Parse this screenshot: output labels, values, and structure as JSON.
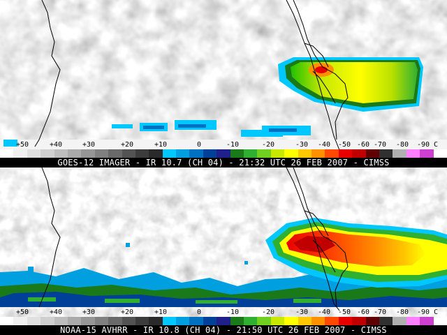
{
  "panels": [
    {
      "caption": "GOES-12 IMAGER - IR 10.7 (CH 04) - 21:32 UTC 26 FEB 2007 - CIMSS"
    },
    {
      "caption": "NOAA-15 AVHRR - IR 10.8 (CH 04) - 21:50 UTC 26 FEB 2007 - CIMSS"
    }
  ],
  "scale": {
    "labels": [
      "+50",
      "+40",
      "+30",
      "+20",
      "+10",
      "0",
      "-10",
      "-20",
      "-30",
      "-40",
      "-50",
      "-60",
      "-70",
      "-80",
      "-90 C"
    ],
    "colors": [
      "#ffffff",
      "#f0f0f0",
      "#e0e0e0",
      "#cfcfcf",
      "#bdbdbd",
      "#aaaaaa",
      "#969696",
      "#808080",
      "#6a6a6a",
      "#535353",
      "#3c3c3c",
      "#2a2a2a",
      "#00c8ff",
      "#00a0e0",
      "#0070c0",
      "#004098",
      "#20208a",
      "#1a7a1a",
      "#30b030",
      "#70d020",
      "#c8e800",
      "#ffff00",
      "#ffc800",
      "#ff9000",
      "#ff4800",
      "#e80000",
      "#c00000",
      "#600000",
      "#303030",
      "#b0b0b0",
      "#ff80ff",
      "#d040d0",
      "#ffffff"
    ]
  }
}
